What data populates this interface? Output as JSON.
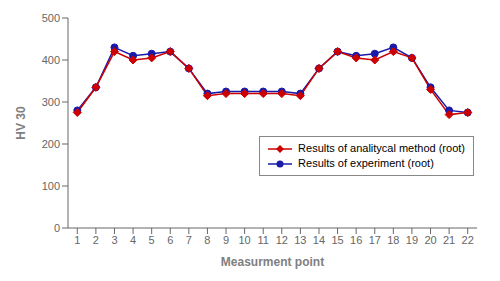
{
  "chart_data": {
    "type": "line",
    "xlabel": "Measurment point",
    "ylabel": "HV 30",
    "x": [
      1,
      2,
      3,
      4,
      5,
      6,
      7,
      8,
      9,
      10,
      11,
      12,
      13,
      14,
      15,
      16,
      17,
      18,
      19,
      20,
      21,
      22
    ],
    "series": [
      {
        "name": "Results of analitycal method (root)",
        "color": "#cc0000",
        "marker": "diamond",
        "values": [
          275,
          335,
          420,
          400,
          405,
          420,
          380,
          315,
          320,
          320,
          320,
          320,
          315,
          380,
          420,
          405,
          400,
          420,
          405,
          330,
          270,
          275
        ]
      },
      {
        "name": "Results of experiment (root)",
        "color": "#1a1aaa",
        "marker": "circle",
        "values": [
          280,
          335,
          430,
          410,
          415,
          420,
          380,
          320,
          325,
          325,
          325,
          325,
          320,
          380,
          420,
          410,
          415,
          430,
          405,
          335,
          280,
          275
        ]
      }
    ],
    "xlim": [
      0.5,
      22.5
    ],
    "ylim": [
      0,
      500
    ],
    "xticks": [
      1,
      2,
      3,
      4,
      5,
      6,
      7,
      8,
      9,
      10,
      11,
      12,
      13,
      14,
      15,
      16,
      17,
      18,
      19,
      20,
      21,
      22
    ],
    "yticks": [
      0,
      100,
      200,
      300,
      400,
      500
    ],
    "grid": false,
    "legend": "lower right"
  }
}
